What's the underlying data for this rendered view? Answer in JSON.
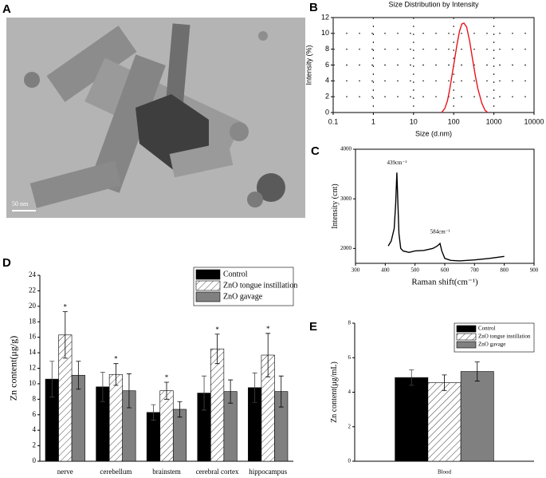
{
  "chart_data": [
    {
      "type": "image",
      "panel": "A",
      "scale_bar_label": "50 nm"
    },
    {
      "type": "line",
      "panel": "B",
      "title": "Size Distribution by Intensity",
      "xlabel": "Size (d.nm)",
      "ylabel": "Intensity (%)",
      "xscale": "log",
      "xlim": [
        0.1,
        10000
      ],
      "xticks": [
        0.1,
        1,
        10,
        100,
        1000,
        10000
      ],
      "ylim": [
        0,
        12
      ],
      "yticks": [
        0,
        2,
        4,
        6,
        8,
        10,
        12
      ],
      "grid": true,
      "color": "#e8141c",
      "x": [
        50,
        60,
        70,
        80,
        100,
        120,
        140,
        160,
        180,
        210,
        250,
        300,
        350,
        400,
        500,
        600,
        700
      ],
      "values": [
        0,
        0.5,
        1.5,
        3,
        6,
        8.5,
        10.3,
        11.2,
        11.3,
        10.8,
        9,
        6.5,
        4.5,
        3,
        1.2,
        0.3,
        0
      ]
    },
    {
      "type": "line",
      "panel": "C",
      "xlabel": "Raman shift(cm⁻¹)",
      "ylabel": "Intensity (cnt)",
      "xlim": [
        300,
        900
      ],
      "xticks": [
        300,
        400,
        500,
        600,
        700,
        800,
        900
      ],
      "ylim": [
        1700,
        4000
      ],
      "yticks": [
        2000,
        3000,
        4000
      ],
      "grid": false,
      "color": "#000000",
      "annotations": [
        {
          "text": "439cm⁻¹",
          "x": 439,
          "y": 3720
        },
        {
          "text": "584cm⁻¹",
          "x": 584,
          "y": 2330
        }
      ],
      "x": [
        410,
        420,
        430,
        435,
        439,
        442,
        446,
        452,
        460,
        480,
        500,
        530,
        560,
        575,
        584,
        590,
        600,
        620,
        650,
        700,
        750,
        800
      ],
      "values": [
        2050,
        2150,
        2400,
        2900,
        3530,
        3000,
        2300,
        2000,
        1950,
        1920,
        1950,
        1960,
        2000,
        2050,
        2100,
        1950,
        1800,
        1760,
        1750,
        1770,
        1800,
        1840
      ]
    },
    {
      "type": "bar",
      "panel": "D",
      "ylabel": "Zn content(μg/g)",
      "ylim": [
        0,
        24
      ],
      "yticks": [
        0,
        2,
        4,
        6,
        8,
        10,
        12,
        14,
        16,
        18,
        20,
        22,
        24
      ],
      "legend": "upper right",
      "categories": [
        "nerve",
        "cerebellum",
        "brainstem",
        "cerebral cortex",
        "hippocampus"
      ],
      "series": [
        {
          "name": "Control",
          "color": "#000000",
          "hatch": false,
          "values": [
            10.6,
            9.6,
            6.3,
            8.8,
            9.5
          ],
          "errors": [
            2.3,
            1.9,
            1.0,
            2.2,
            1.9
          ]
        },
        {
          "name": "ZnO tongue instillation",
          "color": "#ffffff",
          "hatch": true,
          "values": [
            16.3,
            11.2,
            9.1,
            14.5,
            13.7
          ],
          "errors": [
            3.0,
            1.4,
            1.1,
            1.9,
            2.8
          ],
          "significance": [
            "*",
            "*",
            "*",
            "*",
            "*"
          ]
        },
        {
          "name": "ZnO gavage",
          "color": "#808080",
          "hatch": false,
          "values": [
            11.1,
            9.1,
            6.7,
            9.0,
            9.0
          ],
          "errors": [
            1.8,
            2.2,
            1.0,
            1.5,
            2.0
          ]
        }
      ]
    },
    {
      "type": "bar",
      "panel": "E",
      "ylabel": "Zn content(μg/mL)",
      "ylim": [
        0,
        8
      ],
      "yticks": [
        0,
        2,
        4,
        6,
        8
      ],
      "legend": "upper right",
      "categories": [
        "Blood"
      ],
      "series": [
        {
          "name": "Control",
          "color": "#000000",
          "hatch": false,
          "values": [
            4.85
          ],
          "errors": [
            0.45
          ]
        },
        {
          "name": "ZnO tongue instillation",
          "color": "#ffffff",
          "hatch": true,
          "values": [
            4.55
          ],
          "errors": [
            0.45
          ]
        },
        {
          "name": "ZnO gavage",
          "color": "#808080",
          "hatch": false,
          "values": [
            5.2
          ],
          "errors": [
            0.55
          ]
        }
      ]
    }
  ]
}
